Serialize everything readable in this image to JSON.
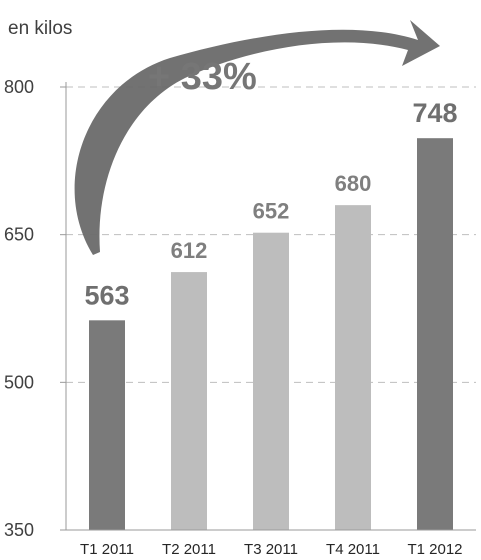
{
  "chart_data": {
    "type": "bar",
    "unit_label": "en kilos",
    "categories": [
      "T1 2011",
      "T2 2011",
      "T3 2011",
      "T4 2011",
      "T1 2012"
    ],
    "values": [
      563,
      612,
      652,
      680,
      748
    ],
    "ylim": [
      350,
      800
    ],
    "yticks": [
      350,
      500,
      650,
      800
    ],
    "grid": true,
    "annotation": "+ 33%",
    "colors": {
      "highlight": "#7a7a7a",
      "regular": "#bdbdbd",
      "grid": "#bfbfbf",
      "arrow": "#6a6a6a"
    },
    "highlighted": [
      0,
      4
    ]
  }
}
